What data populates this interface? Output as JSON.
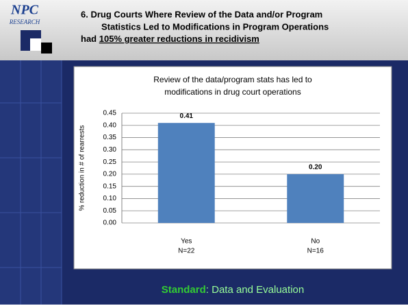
{
  "slide": {
    "logo": "NPC",
    "logo_sub": "RESEARCH",
    "title_lines": [
      "6. Drug Courts Where Review of the Data and/or Program",
      "Statistics Led to Modifications in Program Operations"
    ],
    "title_prefix": "had",
    "title_emphasis": "105% greater reductions in recidivism",
    "footer_label": "Standard",
    "footer_text": ": Data and Evaluation"
  },
  "chart_data": {
    "type": "bar",
    "title": [
      "Review of the data/program stats has led to",
      "modifications in drug court operations"
    ],
    "ylabel": "% reduction in # of rearrests",
    "categories": [
      "Yes",
      "No"
    ],
    "category_counts": [
      "N=22",
      "N=16"
    ],
    "values": [
      0.41,
      0.2
    ],
    "value_labels": [
      "0.41",
      "0.20"
    ],
    "color": "#4f81bd",
    "ylim": [
      0,
      0.45
    ],
    "yticks": [
      {
        "value": 0,
        "label": "0.00"
      },
      {
        "value": 0.05,
        "label": "0.05"
      },
      {
        "value": 0.1,
        "label": "0.10"
      },
      {
        "value": 0.15,
        "label": "0.15"
      },
      {
        "value": 0.2,
        "label": "0.20"
      },
      {
        "value": 0.25,
        "label": "0.25"
      },
      {
        "value": 0.3,
        "label": "0.30"
      },
      {
        "value": 0.35,
        "label": "0.35"
      },
      {
        "value": 0.4,
        "label": "0.40"
      },
      {
        "value": 0.45,
        "label": "0.45"
      }
    ],
    "grid": true
  }
}
